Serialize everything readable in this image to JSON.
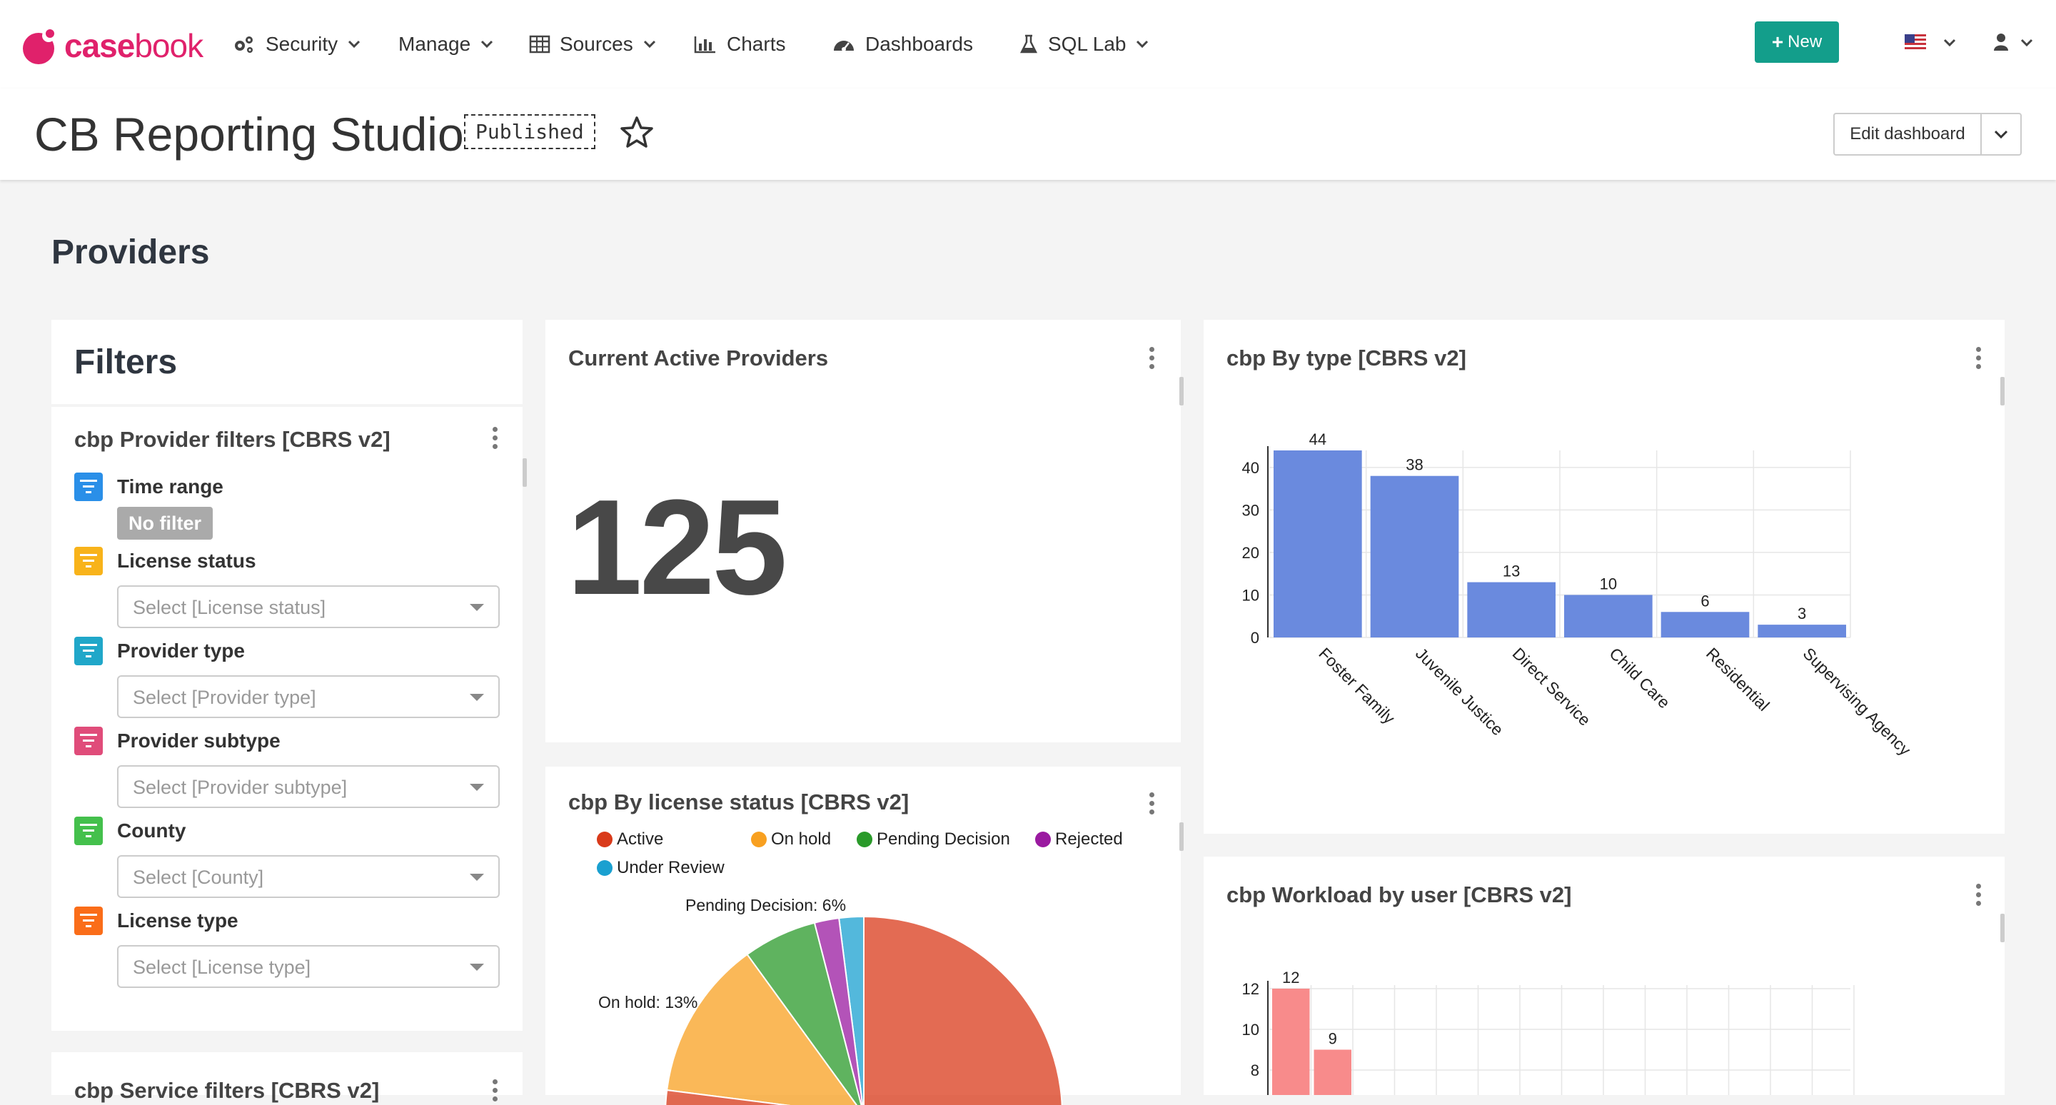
{
  "brand": {
    "name_part1": "case",
    "name_part2": "book"
  },
  "nav": {
    "items": [
      {
        "label": "Security",
        "icon": "gears-icon",
        "dropdown": true
      },
      {
        "label": "Manage",
        "dropdown": true
      },
      {
        "label": "Sources",
        "icon": "table-icon",
        "dropdown": true
      },
      {
        "label": "Charts",
        "icon": "bar-chart-icon",
        "dropdown": false
      },
      {
        "label": "Dashboards",
        "icon": "dashboard-icon",
        "dropdown": false
      },
      {
        "label": "SQL Lab",
        "icon": "flask-icon",
        "dropdown": true
      }
    ],
    "new_button": "New"
  },
  "header": {
    "title": "CB Reporting Studio",
    "status_badge": "Published",
    "edit_button": "Edit dashboard"
  },
  "section": {
    "title": "Providers"
  },
  "filters": {
    "title": "Filters",
    "card_title": "cbp Provider filters [CBRS v2]",
    "time_range_label": "Time range",
    "time_range_value": "No filter",
    "items": [
      {
        "label": "License status",
        "placeholder": "Select [License status]",
        "color": "#f8b31a"
      },
      {
        "label": "Provider type",
        "placeholder": "Select [Provider type]",
        "color": "#20a7c9"
      },
      {
        "label": "Provider subtype",
        "placeholder": "Select [Provider subtype]",
        "color": "#e04c7a"
      },
      {
        "label": "County",
        "placeholder": "Select [County]",
        "color": "#44c04c"
      },
      {
        "label": "License type",
        "placeholder": "Select [License type]",
        "color": "#fa6d19"
      }
    ],
    "time_range_color": "#2a8fe8",
    "next_card_title": "cbp Service filters [CBRS v2]"
  },
  "active_providers": {
    "title": "Current Active Providers",
    "value": "125"
  },
  "by_type": {
    "title": "cbp By type [CBRS v2]"
  },
  "license_status": {
    "title": "cbp By license status [CBRS v2]",
    "legend": [
      {
        "name": "Active",
        "color": "#d93a1a"
      },
      {
        "name": "On hold",
        "color": "#f8a020"
      },
      {
        "name": "Pending Decision",
        "color": "#2a9a2a"
      },
      {
        "name": "Rejected",
        "color": "#9a1aa0"
      },
      {
        "name": "Under Review",
        "color": "#1aa0d0"
      }
    ],
    "slice_labels": {
      "pending": "Pending Decision: 6%",
      "onhold": "On hold: 13%"
    }
  },
  "workload": {
    "title": "cbp Workload by user [CBRS v2]"
  },
  "chart_data": [
    {
      "type": "bar",
      "title": "cbp By type [CBRS v2]",
      "categories": [
        "Foster Family",
        "Juvenile Justice",
        "Direct Service",
        "Child Care",
        "Residential",
        "Supervising Agency"
      ],
      "values": [
        44,
        38,
        13,
        10,
        6,
        3
      ],
      "yticks": [
        0,
        10,
        20,
        30,
        40
      ],
      "ylim": [
        0,
        44
      ],
      "grid": true,
      "color": "#6a8ade"
    },
    {
      "type": "pie",
      "title": "cbp By license status [CBRS v2]",
      "categories": [
        "Active",
        "On hold",
        "Pending Decision",
        "Rejected",
        "Under Review"
      ],
      "values": [
        77,
        13,
        6,
        2,
        2
      ],
      "unit": "%"
    },
    {
      "type": "bar",
      "title": "cbp Workload by user [CBRS v2]",
      "categories": [
        "",
        ""
      ],
      "values": [
        12,
        9
      ],
      "yticks": [
        8,
        10,
        12
      ],
      "grid": true,
      "color": "#f88b8b"
    }
  ]
}
